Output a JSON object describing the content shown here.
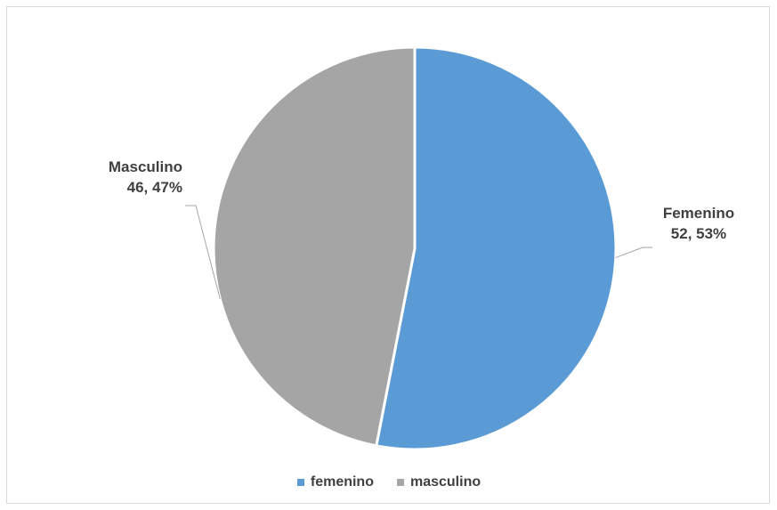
{
  "chart_data": {
    "type": "pie",
    "categories": [
      "femenino",
      "masculino"
    ],
    "values": [
      52,
      46
    ],
    "percentages": [
      53,
      47
    ],
    "colors": [
      "#5b9bd5",
      "#a5a5a5"
    ],
    "data_labels": [
      {
        "name": "Femenino",
        "value_text": "52, 53%"
      },
      {
        "name": "Masculino",
        "value_text": "46, 47%"
      }
    ],
    "legend": {
      "position": "bottom",
      "entries": [
        "femenino",
        "masculino"
      ]
    }
  }
}
